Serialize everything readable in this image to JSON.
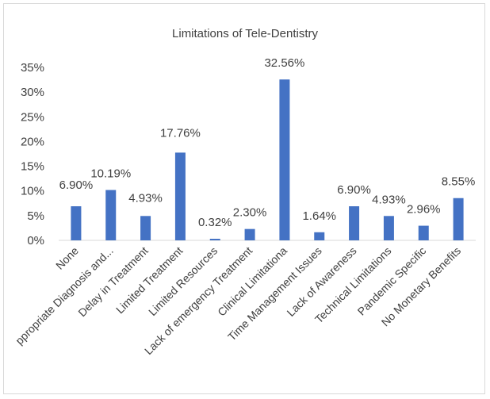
{
  "chart_data": {
    "type": "bar",
    "title": "Limitations of Tele-Dentistry",
    "xlabel": "",
    "ylabel": "",
    "ylim": [
      0,
      0.35
    ],
    "y_tick_labels": [
      "0%",
      "5%",
      "10%",
      "15%",
      "20%",
      "25%",
      "30%",
      "35%"
    ],
    "grid": false,
    "legend": "none",
    "bar_color": "#4472c4",
    "categories": [
      "None",
      "ppropriate Diagnosis and...",
      "Delay in Treatment",
      "Limited Treatment",
      "Limited Resources",
      "Lack of emergency Treatment",
      "Clinical Limitationa",
      "Time Management Issues",
      "Lack of Awareness",
      "Technical Limitations",
      "Pandemic Specific",
      "No Monetary Benefits"
    ],
    "values": [
      0.069,
      0.1019,
      0.0493,
      0.1776,
      0.0032,
      0.023,
      0.3256,
      0.0164,
      0.069,
      0.0493,
      0.0296,
      0.0855
    ],
    "data_labels": [
      "6.90%",
      "10.19%",
      "4.93%",
      "17.76%",
      "0.32%",
      "2.30%",
      "32.56%",
      "1.64%",
      "6.90%",
      "4.93%",
      "2.96%",
      "8.55%"
    ]
  }
}
